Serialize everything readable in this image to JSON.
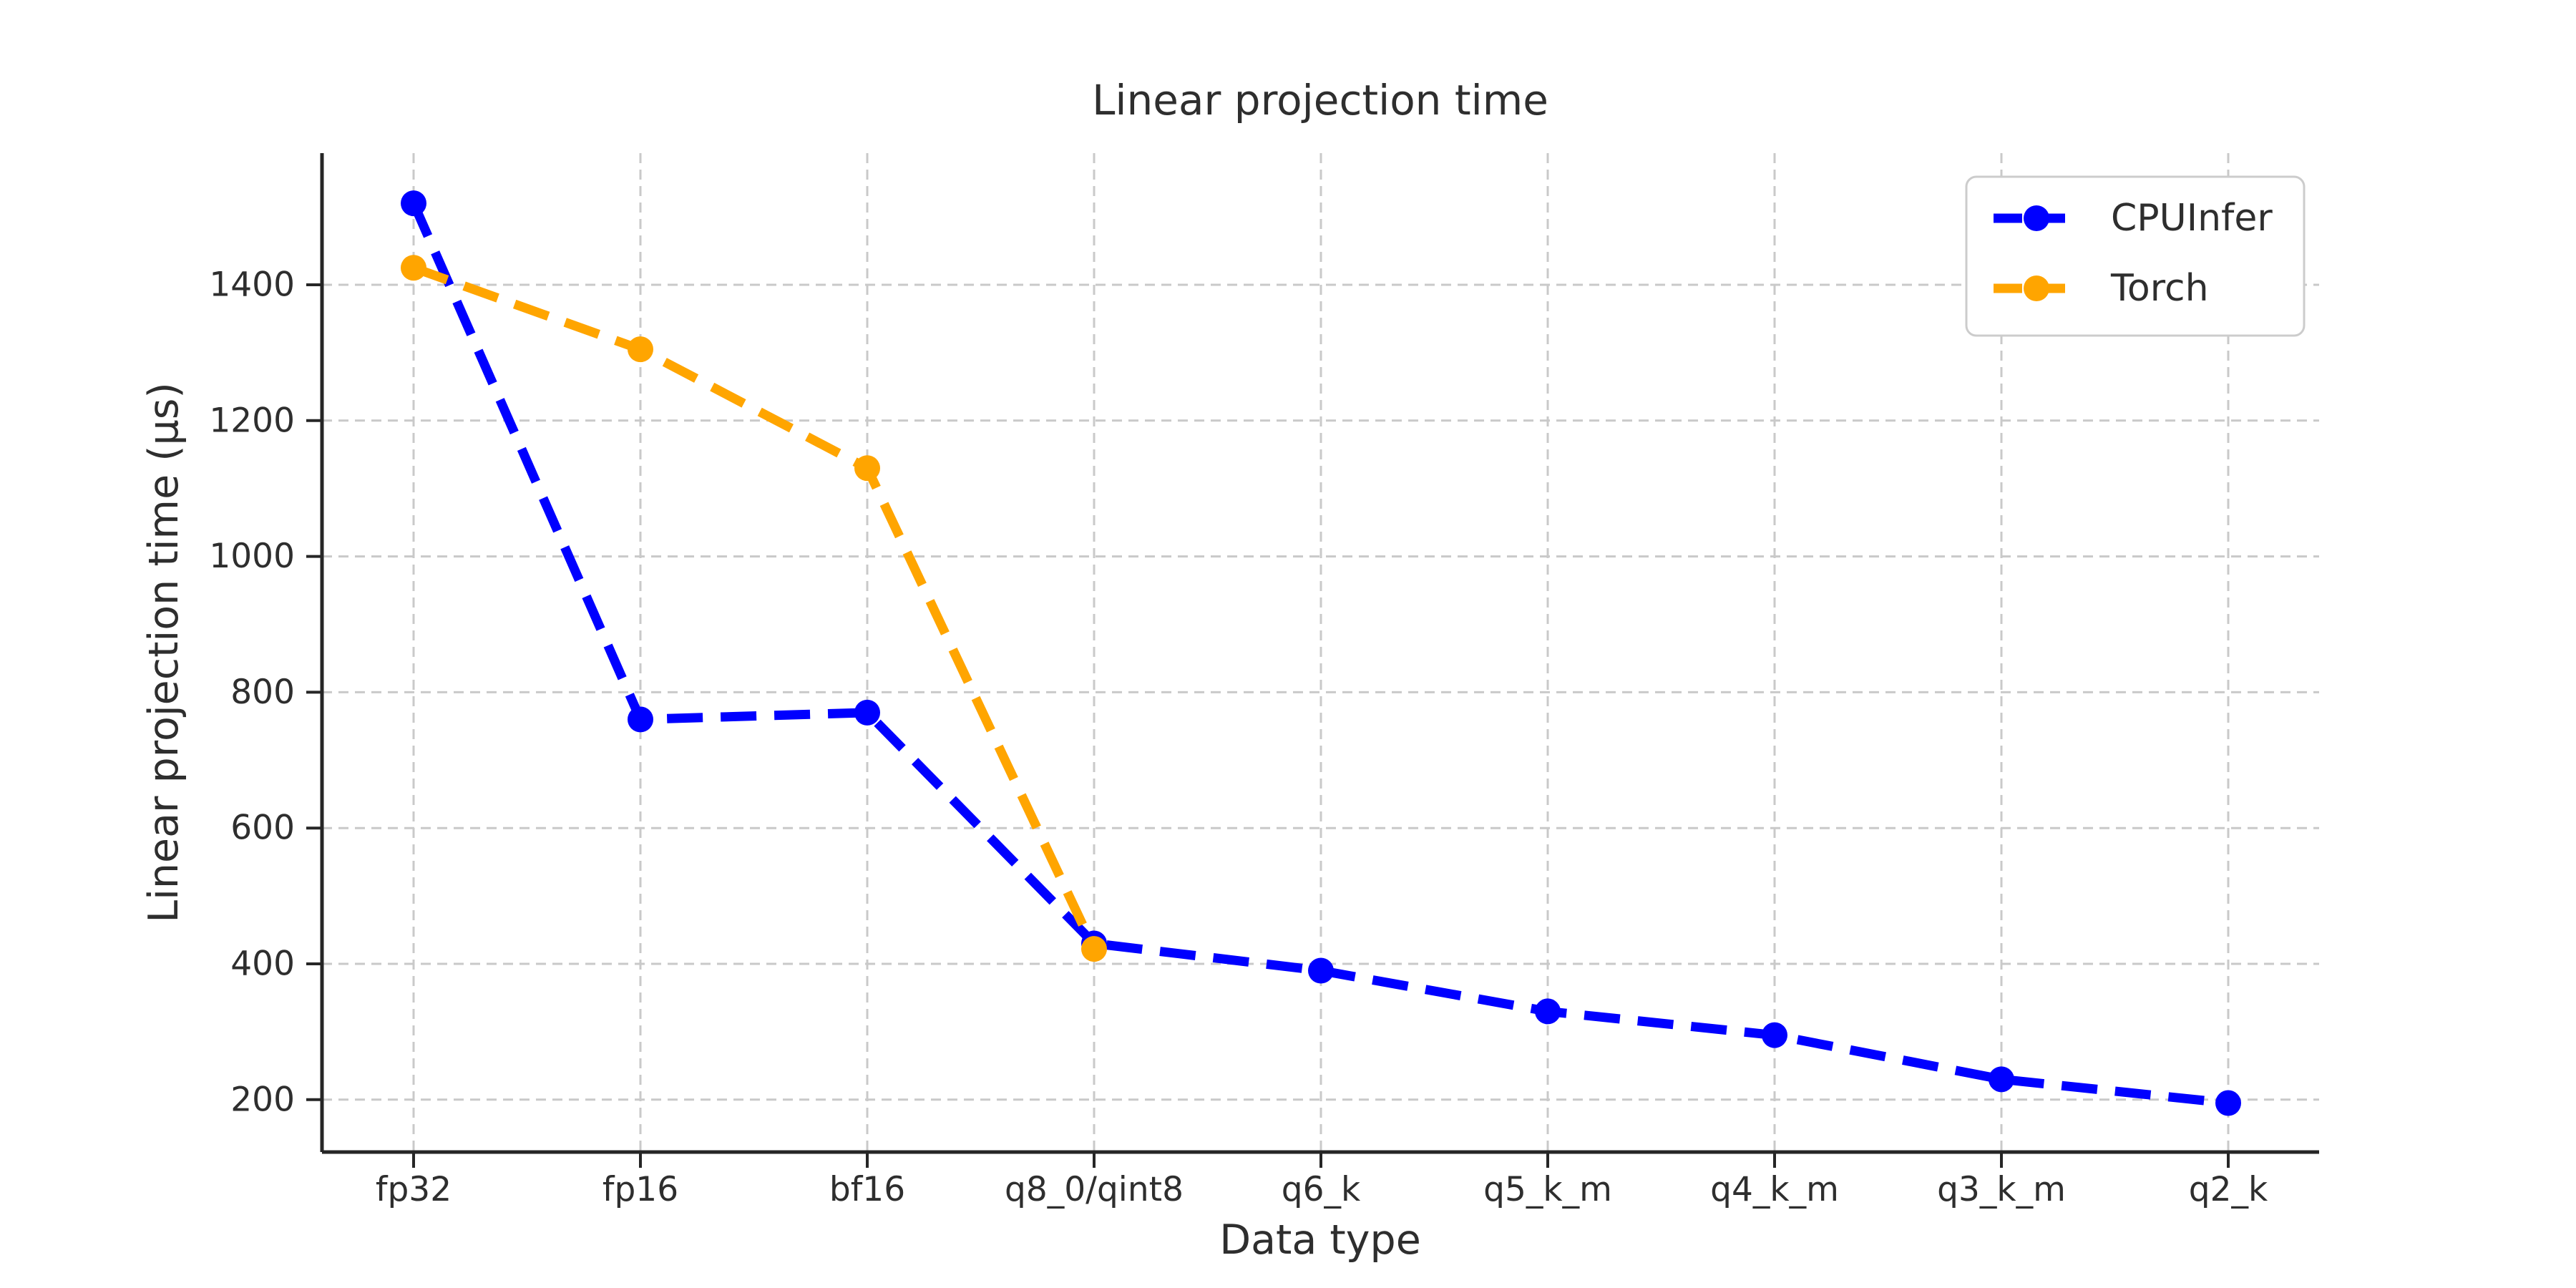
{
  "chart_data": {
    "type": "line",
    "title": "Linear projection time",
    "xlabel": "Data type",
    "ylabel": "Linear projection time (μs)",
    "categories": [
      "fp32",
      "fp16",
      "bf16",
      "q8_0/qint8",
      "q6_k",
      "q5_k_m",
      "q4_k_m",
      "q3_k_m",
      "q2_k"
    ],
    "y_ticks": [
      200,
      400,
      600,
      800,
      1000,
      1200,
      1400
    ],
    "ylim": [
      115,
      1595
    ],
    "grid": true,
    "legend_position": "upper right",
    "line_style": "dashed",
    "marker": "circle",
    "background_color": "#ffffff",
    "grid_color": "#c9c9c9",
    "text_color": "#2e2e2e",
    "series": [
      {
        "name": "CPUInfer",
        "color": "#0000ff",
        "values": [
          1520,
          760,
          770,
          430,
          390,
          330,
          295,
          230,
          195
        ]
      },
      {
        "name": "Torch",
        "color": "#ffa500",
        "values": [
          1425,
          1305,
          1130,
          422,
          null,
          null,
          null,
          null,
          null
        ]
      }
    ]
  }
}
